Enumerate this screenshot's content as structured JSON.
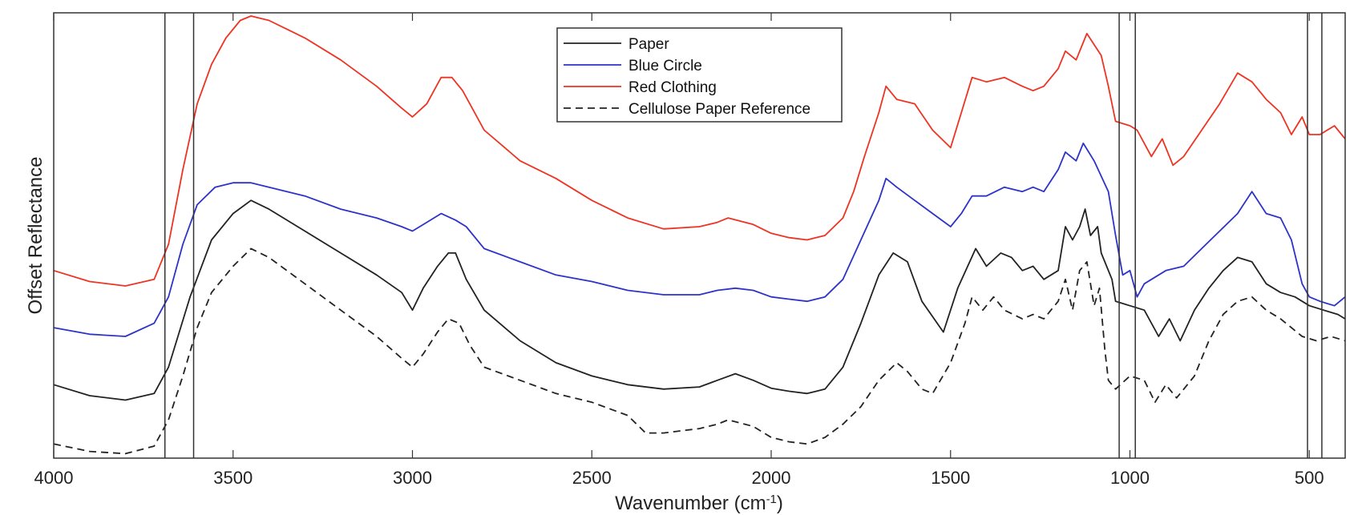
{
  "chart_data": {
    "type": "line",
    "xlabel": "Wavenumber (cm",
    "xlabel_sup": "-1",
    "xlabel_end": ")",
    "ylabel": "Offset Reflectance",
    "xlim": [
      4000,
      400
    ],
    "x_reversed": true,
    "x_ticks": [
      4000,
      3500,
      3000,
      2500,
      2000,
      1500,
      1000,
      500
    ],
    "x_tick_labels": [
      "4000",
      "3500",
      "3000",
      "2500",
      "2000",
      "1500",
      "1000",
      "500"
    ],
    "ylim": [
      0,
      100
    ],
    "y_ticks_shown": false,
    "legend_position": "top-center",
    "reference_lines_x": [
      3690,
      3610,
      1030,
      985,
      505,
      465
    ],
    "series": [
      {
        "name": "Paper",
        "color": "#222222",
        "dash": "solid",
        "points": [
          [
            4000,
            16
          ],
          [
            3900,
            13.5
          ],
          [
            3800,
            12.5
          ],
          [
            3720,
            14
          ],
          [
            3680,
            20
          ],
          [
            3620,
            36
          ],
          [
            3560,
            49
          ],
          [
            3500,
            55
          ],
          [
            3450,
            58
          ],
          [
            3400,
            56
          ],
          [
            3300,
            51
          ],
          [
            3200,
            46
          ],
          [
            3100,
            41
          ],
          [
            3030,
            37
          ],
          [
            3000,
            33
          ],
          [
            2970,
            38
          ],
          [
            2930,
            43
          ],
          [
            2900,
            46
          ],
          [
            2880,
            46
          ],
          [
            2850,
            40
          ],
          [
            2800,
            33
          ],
          [
            2700,
            26
          ],
          [
            2600,
            21
          ],
          [
            2500,
            18
          ],
          [
            2400,
            16
          ],
          [
            2300,
            15
          ],
          [
            2200,
            15.5
          ],
          [
            2150,
            17
          ],
          [
            2100,
            18.5
          ],
          [
            2050,
            17
          ],
          [
            2000,
            15.2
          ],
          [
            1950,
            14.5
          ],
          [
            1900,
            14
          ],
          [
            1850,
            15
          ],
          [
            1800,
            20
          ],
          [
            1750,
            30
          ],
          [
            1700,
            41
          ],
          [
            1660,
            46
          ],
          [
            1620,
            44
          ],
          [
            1580,
            35
          ],
          [
            1520,
            28
          ],
          [
            1480,
            38
          ],
          [
            1430,
            47
          ],
          [
            1400,
            43
          ],
          [
            1360,
            46
          ],
          [
            1330,
            45
          ],
          [
            1300,
            42
          ],
          [
            1270,
            43
          ],
          [
            1240,
            40
          ],
          [
            1200,
            42
          ],
          [
            1180,
            52
          ],
          [
            1160,
            49
          ],
          [
            1140,
            52
          ],
          [
            1125,
            56
          ],
          [
            1110,
            50
          ],
          [
            1090,
            52
          ],
          [
            1080,
            46
          ],
          [
            1050,
            40
          ],
          [
            1040,
            35
          ],
          [
            1000,
            34
          ],
          [
            960,
            33
          ],
          [
            920,
            27
          ],
          [
            890,
            31
          ],
          [
            860,
            26
          ],
          [
            820,
            33
          ],
          [
            780,
            38
          ],
          [
            740,
            42
          ],
          [
            700,
            45
          ],
          [
            660,
            44
          ],
          [
            620,
            39
          ],
          [
            580,
            37
          ],
          [
            540,
            36
          ],
          [
            500,
            34
          ],
          [
            460,
            33
          ],
          [
            420,
            32
          ],
          [
            400,
            31
          ]
        ]
      },
      {
        "name": "Blue Circle",
        "color": "#2d33c8",
        "dash": "solid",
        "points": [
          [
            4000,
            29
          ],
          [
            3900,
            27.5
          ],
          [
            3800,
            27
          ],
          [
            3720,
            30
          ],
          [
            3680,
            36
          ],
          [
            3640,
            48
          ],
          [
            3600,
            57
          ],
          [
            3550,
            61
          ],
          [
            3500,
            62
          ],
          [
            3450,
            62
          ],
          [
            3400,
            61
          ],
          [
            3300,
            59
          ],
          [
            3200,
            56
          ],
          [
            3100,
            54
          ],
          [
            3030,
            52
          ],
          [
            3000,
            51
          ],
          [
            2960,
            53
          ],
          [
            2920,
            55
          ],
          [
            2880,
            53.5
          ],
          [
            2850,
            52
          ],
          [
            2800,
            47
          ],
          [
            2700,
            44
          ],
          [
            2600,
            41
          ],
          [
            2500,
            39.5
          ],
          [
            2400,
            37.5
          ],
          [
            2300,
            36.5
          ],
          [
            2200,
            36.5
          ],
          [
            2150,
            37.5
          ],
          [
            2100,
            38
          ],
          [
            2050,
            37.5
          ],
          [
            2000,
            36
          ],
          [
            1950,
            35.5
          ],
          [
            1900,
            35
          ],
          [
            1850,
            36
          ],
          [
            1800,
            40
          ],
          [
            1750,
            49
          ],
          [
            1700,
            58
          ],
          [
            1680,
            63
          ],
          [
            1650,
            61
          ],
          [
            1600,
            58
          ],
          [
            1550,
            55
          ],
          [
            1500,
            52
          ],
          [
            1470,
            55
          ],
          [
            1440,
            59
          ],
          [
            1400,
            59
          ],
          [
            1350,
            61
          ],
          [
            1300,
            60
          ],
          [
            1270,
            61
          ],
          [
            1240,
            60
          ],
          [
            1200,
            65
          ],
          [
            1180,
            69
          ],
          [
            1150,
            67
          ],
          [
            1130,
            71
          ],
          [
            1100,
            67
          ],
          [
            1060,
            60
          ],
          [
            1040,
            50
          ],
          [
            1020,
            41
          ],
          [
            1000,
            42
          ],
          [
            980,
            36
          ],
          [
            960,
            39
          ],
          [
            900,
            42
          ],
          [
            850,
            43
          ],
          [
            800,
            47
          ],
          [
            750,
            51
          ],
          [
            700,
            55
          ],
          [
            660,
            60
          ],
          [
            620,
            55
          ],
          [
            580,
            54
          ],
          [
            550,
            49
          ],
          [
            520,
            39
          ],
          [
            500,
            36
          ],
          [
            470,
            35
          ],
          [
            430,
            34
          ],
          [
            400,
            36
          ]
        ]
      },
      {
        "name": "Red Clothing",
        "color": "#ee3322",
        "dash": "solid",
        "points": [
          [
            4000,
            42
          ],
          [
            3900,
            39.5
          ],
          [
            3800,
            38.5
          ],
          [
            3720,
            40
          ],
          [
            3680,
            48
          ],
          [
            3640,
            65
          ],
          [
            3600,
            80
          ],
          [
            3560,
            89
          ],
          [
            3520,
            95
          ],
          [
            3480,
            99
          ],
          [
            3450,
            100
          ],
          [
            3400,
            99
          ],
          [
            3350,
            97
          ],
          [
            3300,
            95
          ],
          [
            3200,
            90
          ],
          [
            3100,
            84
          ],
          [
            3030,
            79
          ],
          [
            3000,
            77
          ],
          [
            2960,
            80
          ],
          [
            2920,
            86
          ],
          [
            2890,
            86
          ],
          [
            2860,
            83
          ],
          [
            2800,
            74
          ],
          [
            2700,
            67
          ],
          [
            2600,
            63
          ],
          [
            2500,
            58
          ],
          [
            2400,
            54
          ],
          [
            2300,
            51.5
          ],
          [
            2200,
            52
          ],
          [
            2150,
            53
          ],
          [
            2120,
            54
          ],
          [
            2050,
            52.5
          ],
          [
            2000,
            50.5
          ],
          [
            1950,
            49.5
          ],
          [
            1900,
            49
          ],
          [
            1850,
            50
          ],
          [
            1800,
            54
          ],
          [
            1770,
            60
          ],
          [
            1740,
            68
          ],
          [
            1700,
            78
          ],
          [
            1680,
            84
          ],
          [
            1650,
            81
          ],
          [
            1600,
            80
          ],
          [
            1550,
            74
          ],
          [
            1500,
            70
          ],
          [
            1470,
            78
          ],
          [
            1440,
            86
          ],
          [
            1400,
            85
          ],
          [
            1350,
            86
          ],
          [
            1300,
            84
          ],
          [
            1270,
            83
          ],
          [
            1240,
            84
          ],
          [
            1200,
            88
          ],
          [
            1180,
            92
          ],
          [
            1150,
            90
          ],
          [
            1120,
            96
          ],
          [
            1080,
            91
          ],
          [
            1060,
            84
          ],
          [
            1040,
            76
          ],
          [
            1000,
            75
          ],
          [
            980,
            74
          ],
          [
            940,
            68
          ],
          [
            910,
            72
          ],
          [
            880,
            66
          ],
          [
            850,
            68
          ],
          [
            800,
            74
          ],
          [
            750,
            80
          ],
          [
            700,
            87
          ],
          [
            660,
            85
          ],
          [
            620,
            81
          ],
          [
            580,
            78
          ],
          [
            550,
            73
          ],
          [
            520,
            77
          ],
          [
            500,
            73
          ],
          [
            470,
            73
          ],
          [
            430,
            75
          ],
          [
            400,
            72
          ]
        ]
      },
      {
        "name": "Cellulose Paper Reference",
        "color": "#222222",
        "dash": "dashed",
        "points": [
          [
            4000,
            2.5
          ],
          [
            3900,
            0.8
          ],
          [
            3800,
            0.3
          ],
          [
            3720,
            2
          ],
          [
            3680,
            8
          ],
          [
            3640,
            18
          ],
          [
            3600,
            29
          ],
          [
            3560,
            37
          ],
          [
            3500,
            43
          ],
          [
            3450,
            47
          ],
          [
            3400,
            45
          ],
          [
            3300,
            39
          ],
          [
            3200,
            33
          ],
          [
            3100,
            27
          ],
          [
            3030,
            22
          ],
          [
            3000,
            20
          ],
          [
            2970,
            23
          ],
          [
            2930,
            28
          ],
          [
            2900,
            31
          ],
          [
            2870,
            30
          ],
          [
            2840,
            25
          ],
          [
            2800,
            20
          ],
          [
            2700,
            17
          ],
          [
            2600,
            14
          ],
          [
            2500,
            12
          ],
          [
            2400,
            9
          ],
          [
            2350,
            5
          ],
          [
            2300,
            5
          ],
          [
            2200,
            6
          ],
          [
            2150,
            7
          ],
          [
            2120,
            8
          ],
          [
            2050,
            6.5
          ],
          [
            2000,
            4
          ],
          [
            1950,
            3
          ],
          [
            1900,
            2.5
          ],
          [
            1850,
            4
          ],
          [
            1800,
            7
          ],
          [
            1750,
            11
          ],
          [
            1700,
            17
          ],
          [
            1650,
            21
          ],
          [
            1620,
            19
          ],
          [
            1580,
            15
          ],
          [
            1550,
            14
          ],
          [
            1500,
            21
          ],
          [
            1460,
            30
          ],
          [
            1440,
            36
          ],
          [
            1410,
            33
          ],
          [
            1380,
            36
          ],
          [
            1350,
            33
          ],
          [
            1300,
            31
          ],
          [
            1270,
            32
          ],
          [
            1240,
            31
          ],
          [
            1200,
            35
          ],
          [
            1180,
            40
          ],
          [
            1160,
            33
          ],
          [
            1140,
            42
          ],
          [
            1120,
            44
          ],
          [
            1100,
            34
          ],
          [
            1085,
            38
          ],
          [
            1070,
            24
          ],
          [
            1060,
            17
          ],
          [
            1040,
            15
          ],
          [
            1000,
            18
          ],
          [
            960,
            17
          ],
          [
            930,
            12
          ],
          [
            900,
            16
          ],
          [
            870,
            13
          ],
          [
            820,
            18
          ],
          [
            780,
            26
          ],
          [
            740,
            32
          ],
          [
            700,
            35
          ],
          [
            660,
            36
          ],
          [
            620,
            33
          ],
          [
            580,
            31
          ],
          [
            550,
            29
          ],
          [
            520,
            27
          ],
          [
            480,
            26
          ],
          [
            440,
            27
          ],
          [
            400,
            26
          ]
        ]
      }
    ]
  }
}
